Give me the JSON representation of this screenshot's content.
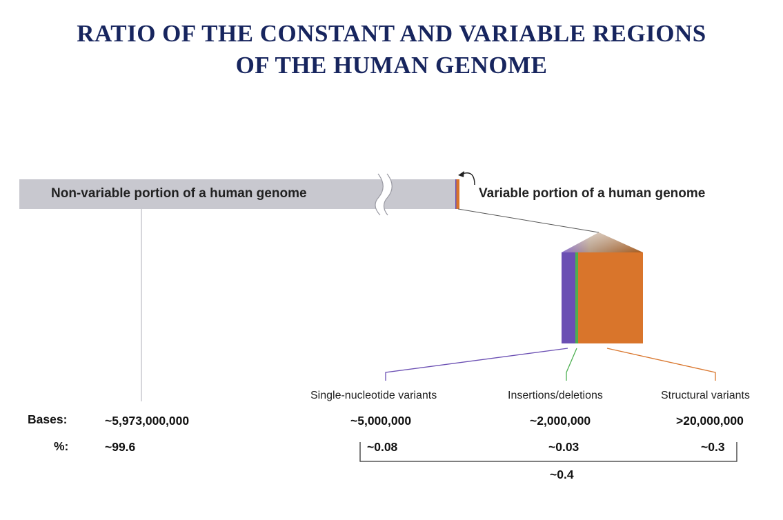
{
  "title": {
    "line1": "RATIO OF THE CONSTANT AND VARIABLE REGIONS",
    "line2": "OF THE HUMAN GENOME"
  },
  "bar": {
    "nonvariable_label": "Non-variable portion of a human genome",
    "variable_label": "Variable portion of a human genome"
  },
  "categories": [
    {
      "label": "Single-nucleotide variants",
      "bases": "~5,000,000",
      "percent": "~0.08",
      "color": "#6b4fb3"
    },
    {
      "label": "Insertions/deletions",
      "bases": "~2,000,000",
      "percent": "~0.03",
      "color": "#4caf50"
    },
    {
      "label": "Structural variants",
      "bases": ">20,000,000",
      "percent": "~0.3",
      "color": "#d9752b"
    }
  ],
  "rows": {
    "bases_label": "Bases:",
    "percent_label": "%:",
    "nonvariable_bases": "~5,973,000,000",
    "nonvariable_percent": "~99.6",
    "variable_total_percent": "~0.4"
  },
  "colors": {
    "title": "#17255e",
    "bar_gray": "#c8c8cf",
    "orange": "#d9752b",
    "purple": "#6b4fb3",
    "green": "#4caf50"
  }
}
